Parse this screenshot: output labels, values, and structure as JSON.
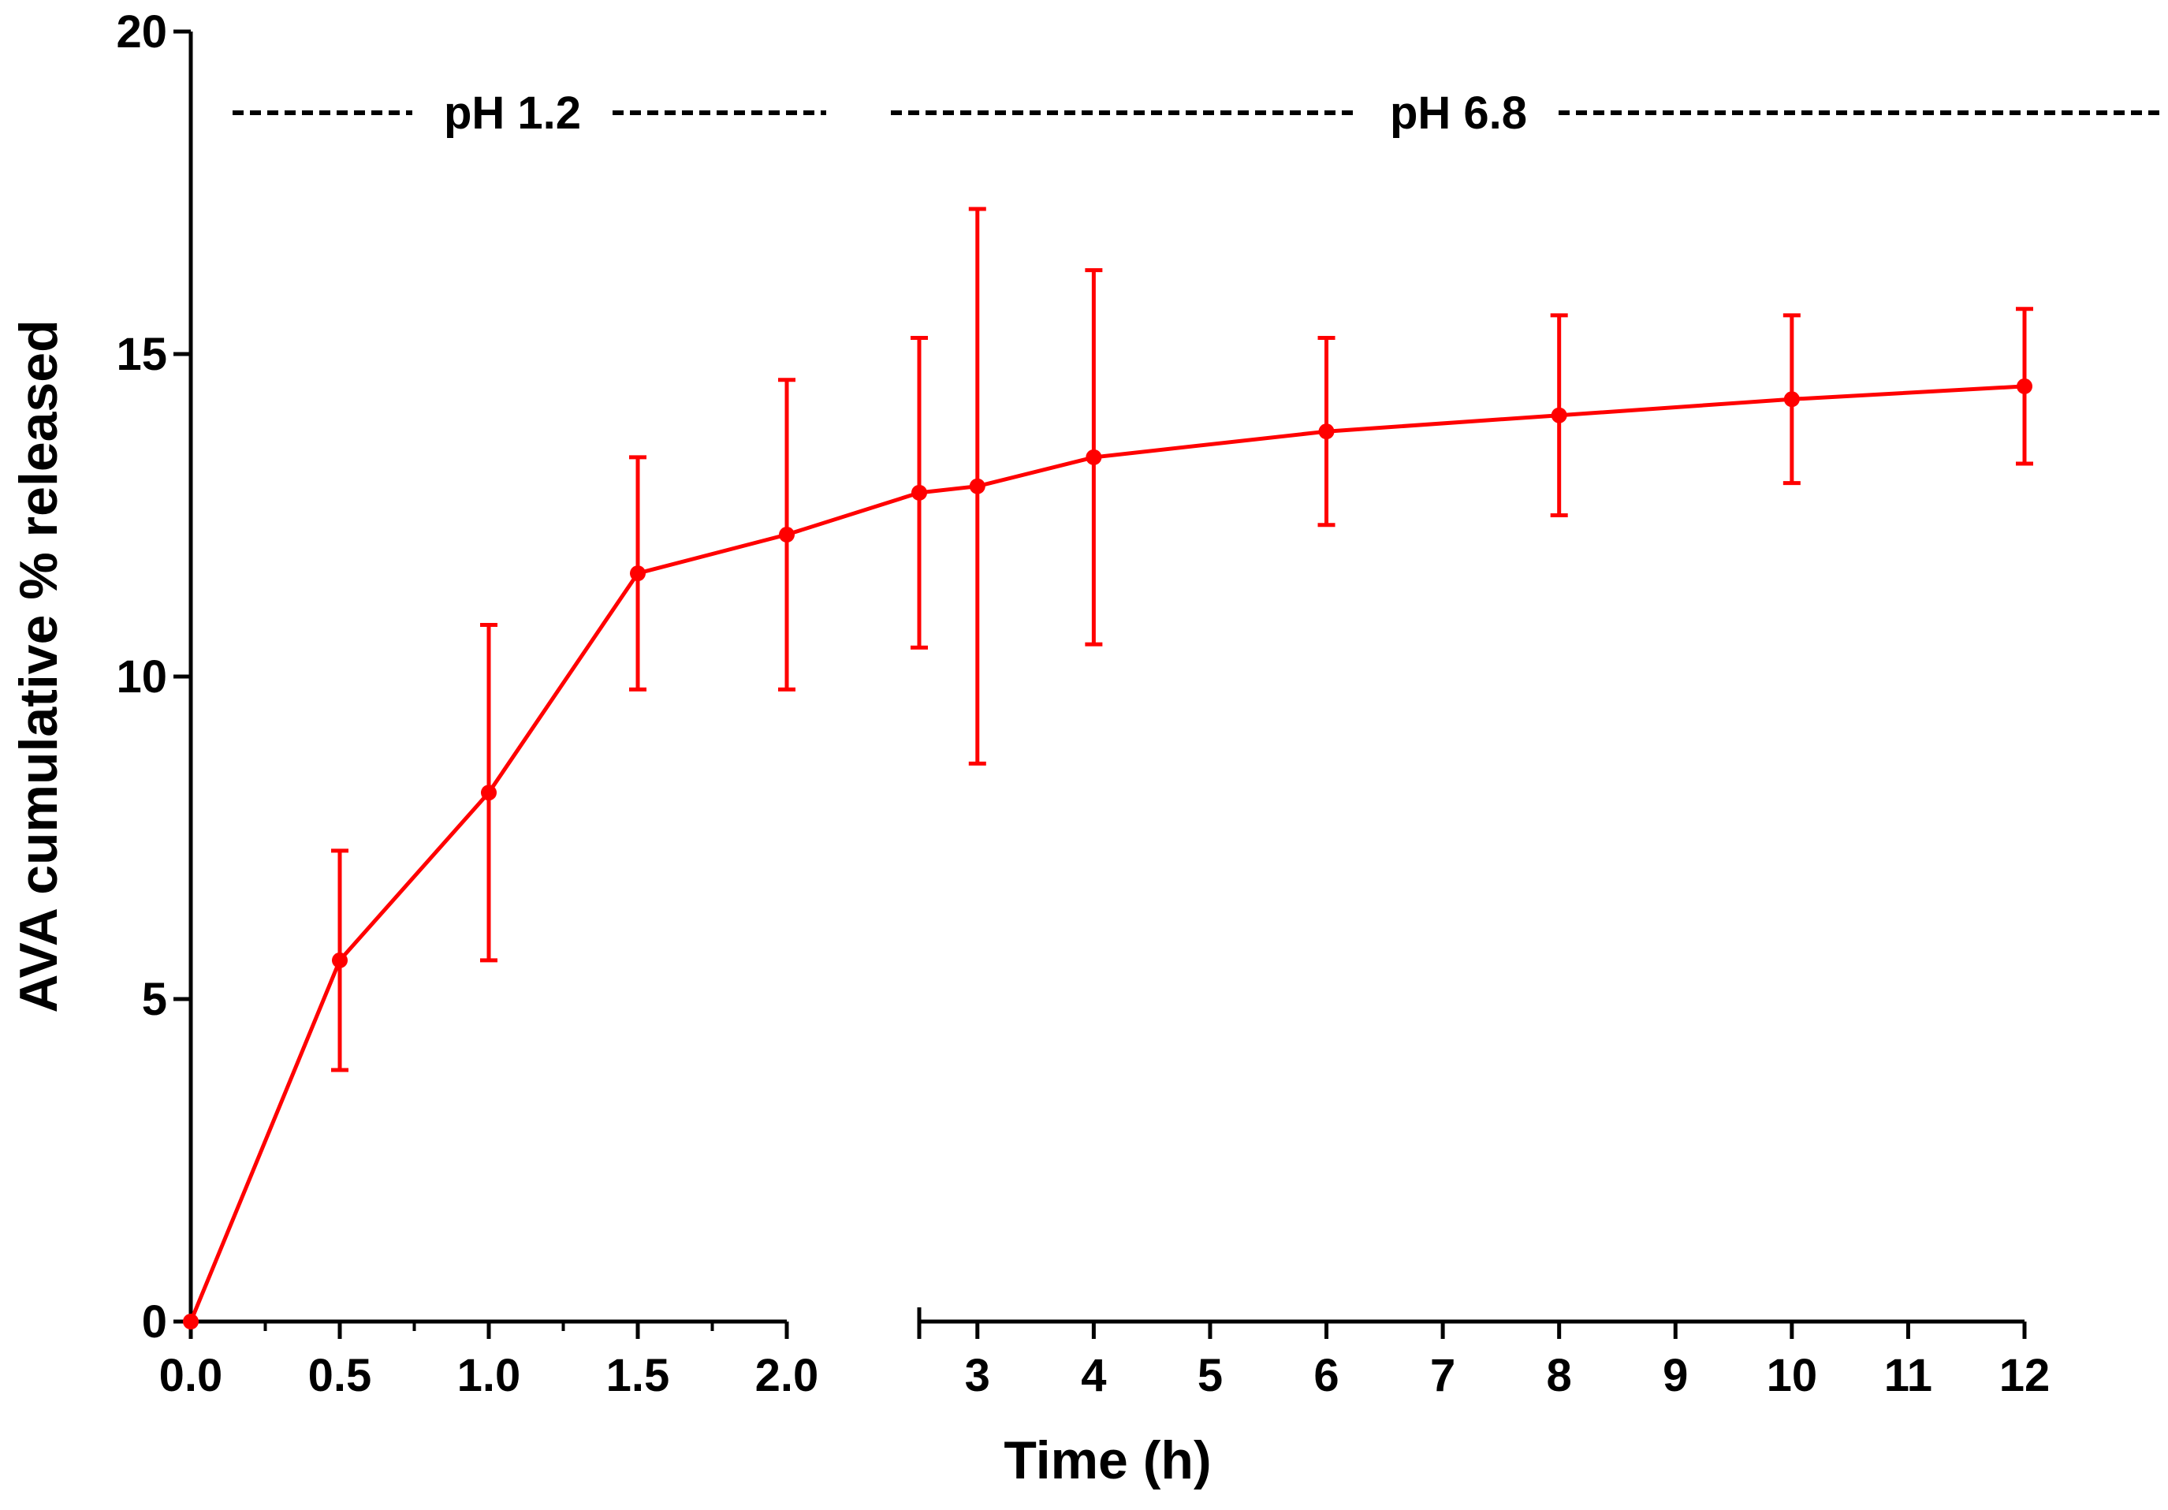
{
  "chart_data": {
    "type": "line",
    "title": "",
    "xlabel": "Time (h)",
    "ylabel": "AVA cumulative % released",
    "ylim": [
      0,
      20
    ],
    "yticks": [
      0,
      5,
      10,
      15,
      20
    ],
    "x_segments": [
      {
        "range": [
          0,
          2
        ],
        "ticks": [
          0,
          0.5,
          1.0,
          1.5,
          2.0
        ],
        "tick_labels": [
          "0.0",
          "0.5",
          "1.0",
          "1.5",
          "2.0"
        ],
        "minor_ticks": [
          0.25,
          0.75,
          1.25,
          1.75
        ]
      },
      {
        "range": [
          2.5,
          12
        ],
        "ticks": [
          3,
          4,
          5,
          6,
          7,
          8,
          9,
          10,
          11,
          12
        ],
        "tick_labels": [
          "3",
          "4",
          "5",
          "6",
          "7",
          "8",
          "9",
          "10",
          "11",
          "12"
        ],
        "minor_ticks": []
      }
    ],
    "series": [
      {
        "name": "AVA",
        "color": "#ff0000",
        "points": [
          {
            "x": 0,
            "y": 0,
            "err": 0
          },
          {
            "x": 0.5,
            "y": 5.6,
            "err": 1.7
          },
          {
            "x": 1.0,
            "y": 8.2,
            "err": 2.6
          },
          {
            "x": 1.5,
            "y": 11.6,
            "err": 1.8
          },
          {
            "x": 2.0,
            "y": 12.2,
            "err": 2.4
          },
          {
            "x": 2.5,
            "y": 12.85,
            "err": 2.4
          },
          {
            "x": 3,
            "y": 12.95,
            "err": 4.3
          },
          {
            "x": 4,
            "y": 13.4,
            "err": 2.9
          },
          {
            "x": 6,
            "y": 13.8,
            "err": 1.45
          },
          {
            "x": 8,
            "y": 14.05,
            "err": 1.55
          },
          {
            "x": 10,
            "y": 14.3,
            "err": 1.3
          },
          {
            "x": 12,
            "y": 14.5,
            "err": 1.2
          }
        ]
      }
    ],
    "annotations": [
      {
        "text": "pH 1.2",
        "segment": 0
      },
      {
        "text": "pH 6.8",
        "segment": 1
      }
    ]
  }
}
